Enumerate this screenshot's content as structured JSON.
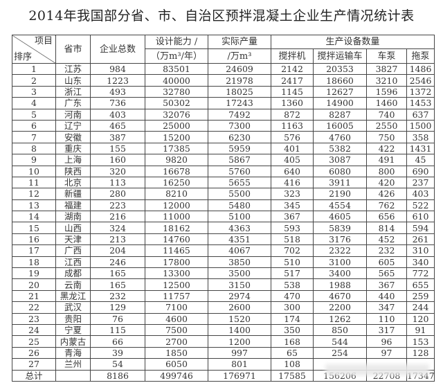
{
  "title": "2014年我国部分省、市、自治区预拌混凝土企业生产情况统计表",
  "headers": {
    "item": "项目",
    "rank": "排序",
    "province": "省市",
    "enterprises": "企业总数",
    "capacity": "设计能力 /",
    "capacity_unit": "（万m³/年）",
    "output": "实际产量",
    "output_unit": "/万m³",
    "equipment": "生产设备数量",
    "mixer": "搅拌机",
    "truck": "搅拌运输车",
    "pump_truck": "车泵",
    "trailer_pump": "拖泵"
  },
  "rows": [
    [
      "1",
      "江苏",
      "984",
      "83501",
      "24609",
      "2142",
      "20353",
      "3827",
      "1486"
    ],
    [
      "2",
      "山东",
      "1223",
      "40000",
      "21978",
      "2417",
      "18660",
      "3210",
      "2546"
    ],
    [
      "3",
      "浙江",
      "493",
      "32780",
      "18025",
      "1145",
      "12627",
      "1596",
      "1372"
    ],
    [
      "4",
      "广东",
      "736",
      "50302",
      "17243",
      "1360",
      "14900",
      "1460",
      "1453"
    ],
    [
      "5",
      "河南",
      "403",
      "32076",
      "7492",
      "872",
      "8287",
      "740",
      "637"
    ],
    [
      "6",
      "辽宁",
      "465",
      "25000",
      "7300",
      "1163",
      "16005",
      "2550",
      "1500"
    ],
    [
      "7",
      "安徽",
      "387",
      "15200",
      "6230",
      "576",
      "4760",
      "750",
      "358"
    ],
    [
      "8",
      "重庆",
      "155",
      "17385",
      "5959",
      "401",
      "5382",
      "422",
      "1431"
    ],
    [
      "9",
      "上海",
      "160",
      "9820",
      "5867",
      "405",
      "3087",
      "491",
      "45"
    ],
    [
      "10",
      "陕西",
      "320",
      "16678",
      "5760",
      "640",
      "6080",
      "800",
      "690"
    ],
    [
      "11",
      "北京",
      "113",
      "16250",
      "5655",
      "416",
      "3911",
      "420",
      "237"
    ],
    [
      "12",
      "新疆",
      "280",
      "8210",
      "5500",
      "323",
      "2190",
      "426",
      "403"
    ],
    [
      "13",
      "福建",
      "223",
      "12000",
      "5480",
      "345",
      "4554",
      "762",
      "522"
    ],
    [
      "14",
      "湖南",
      "216",
      "11000",
      "5100",
      "367",
      "4605",
      "656",
      "610"
    ],
    [
      "15",
      "山西",
      "324",
      "18162",
      "4363",
      "593",
      "5839",
      "814",
      "594"
    ],
    [
      "16",
      "天津",
      "213",
      "14760",
      "4351",
      "518",
      "3176",
      "452",
      "261"
    ],
    [
      "17",
      "广西",
      "204",
      "11465",
      "4067",
      "702",
      "2322",
      "232",
      "310"
    ],
    [
      "18",
      "江西",
      "246",
      "17800",
      "3850",
      "510",
      "3100",
      "605",
      "340"
    ],
    [
      "19",
      "成都",
      "165",
      "13300",
      "3500",
      "517",
      "3400",
      "565",
      "772"
    ],
    [
      "20",
      "云南",
      "165",
      "12500",
      "3150",
      "538",
      "1988",
      "367",
      "655"
    ],
    [
      "21",
      "黑龙江",
      "232",
      "11757",
      "2974",
      "470",
      "4670",
      "440",
      "259"
    ],
    [
      "22",
      "武汉",
      "129",
      "7100",
      "2600",
      "300",
      "2200",
      "347",
      "244"
    ],
    [
      "23",
      "贵阳",
      "76",
      "4600",
      "1520",
      "174",
      "1262",
      "110",
      "120"
    ],
    [
      "24",
      "宁夏",
      "115",
      "7500",
      "1400",
      "350",
      "850",
      "317",
      "91"
    ],
    [
      "25",
      "内蒙古",
      "66",
      "2700",
      "1200",
      "168",
      "544",
      "96",
      "153"
    ],
    [
      "26",
      "青海",
      "39",
      "1850",
      "997",
      "65",
      "254",
      "97",
      "128"
    ],
    [
      "27",
      "兰州",
      "54",
      "6050",
      "801",
      "108",
      "",
      "",
      ""
    ]
  ],
  "total": [
    "总计",
    "",
    "8186",
    "499746",
    "176971",
    "17585",
    "156206",
    "22708",
    "17347"
  ]
}
